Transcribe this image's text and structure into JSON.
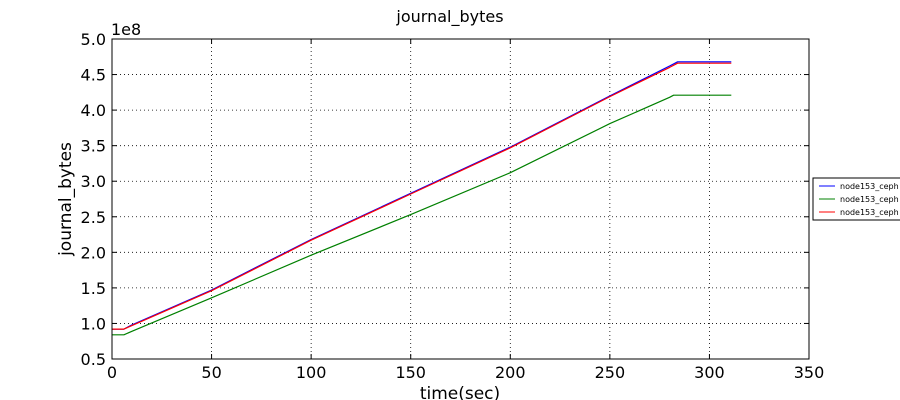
{
  "chart_data": {
    "type": "line",
    "title": "journal_bytes",
    "xlabel": "time(sec)",
    "ylabel": "journal_bytes",
    "y_offset_text": "1e8",
    "xlim": [
      0,
      350
    ],
    "ylim": [
      0.5,
      5.0
    ],
    "x_ticks": [
      "0",
      "50",
      "100",
      "150",
      "200",
      "250",
      "300",
      "350"
    ],
    "y_ticks": [
      "0.5",
      "1.0",
      "1.5",
      "2.0",
      "2.5",
      "3.0",
      "3.5",
      "4.0",
      "4.5",
      "5.0"
    ],
    "grid": true,
    "legend_position": "right",
    "series": [
      {
        "name": "node153_ceph",
        "color": "#0000ff",
        "x": [
          0,
          6,
          10,
          50,
          100,
          150,
          200,
          250,
          280,
          284,
          311
        ],
        "y": [
          0.92,
          0.92,
          0.98,
          1.47,
          2.18,
          2.83,
          3.48,
          4.2,
          4.62,
          4.68,
          4.68
        ]
      },
      {
        "name": "node153_ceph",
        "color": "#008000",
        "x": [
          0,
          6,
          10,
          50,
          100,
          150,
          200,
          250,
          280,
          282,
          311
        ],
        "y": [
          0.84,
          0.84,
          0.89,
          1.36,
          1.96,
          2.53,
          3.12,
          3.81,
          4.18,
          4.21,
          4.21
        ]
      },
      {
        "name": "node153_ceph",
        "color": "#ff0000",
        "x": [
          0,
          6,
          10,
          50,
          100,
          150,
          200,
          250,
          280,
          284,
          311
        ],
        "y": [
          0.92,
          0.92,
          0.97,
          1.46,
          2.17,
          2.82,
          3.47,
          4.19,
          4.6,
          4.66,
          4.66
        ]
      }
    ]
  }
}
